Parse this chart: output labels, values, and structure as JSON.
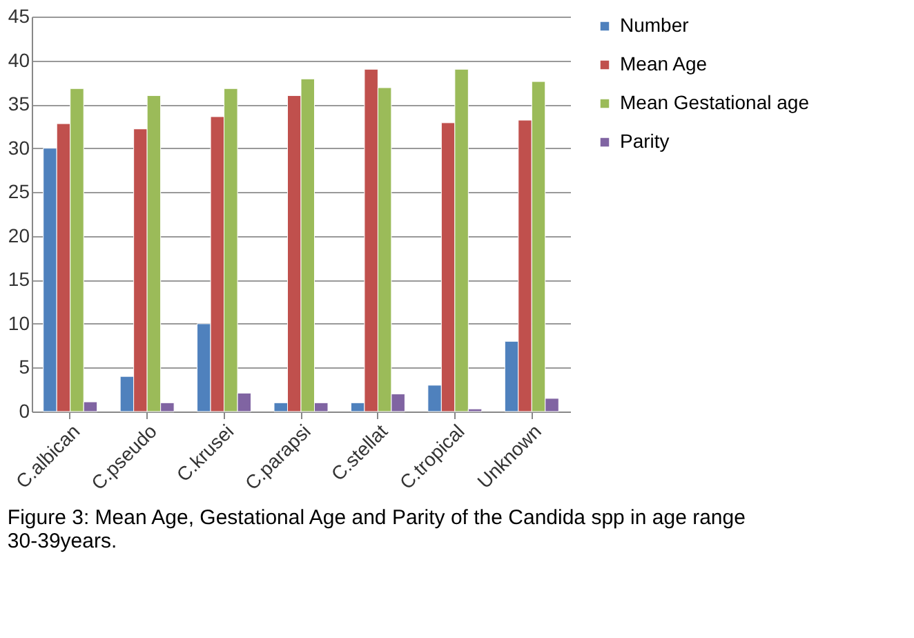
{
  "chart_data": {
    "type": "bar",
    "categories": [
      "C.albican",
      "C.pseudo",
      "C.krusei",
      "C.parapsi",
      "C.stellat",
      "C.tropical",
      "Unknown"
    ],
    "series": [
      {
        "name": "Number",
        "color": "#4f81bd",
        "values": [
          30,
          4,
          10,
          1,
          1,
          3,
          8
        ]
      },
      {
        "name": "Mean Age",
        "color": "#c0504d",
        "values": [
          32.8,
          32.2,
          33.6,
          36,
          39,
          32.9,
          33.2
        ]
      },
      {
        "name": "Mean Gestational age",
        "color": "#9bbb59",
        "values": [
          36.8,
          36,
          36.8,
          37.9,
          36.9,
          39,
          37.6
        ]
      },
      {
        "name": "Parity",
        "color": "#8064a2",
        "values": [
          1.1,
          1.0,
          2.1,
          1.0,
          2.0,
          0.3,
          1.5
        ]
      }
    ],
    "ylim": [
      0,
      45
    ],
    "yticks": [
      0,
      5,
      10,
      15,
      20,
      25,
      30,
      35,
      40,
      45
    ],
    "grid": "y",
    "legend": "right",
    "annotations": [
      "Figure 3: Mean Age, Gestational Age and Parity of the Candida spp in age range 30-39years."
    ]
  }
}
